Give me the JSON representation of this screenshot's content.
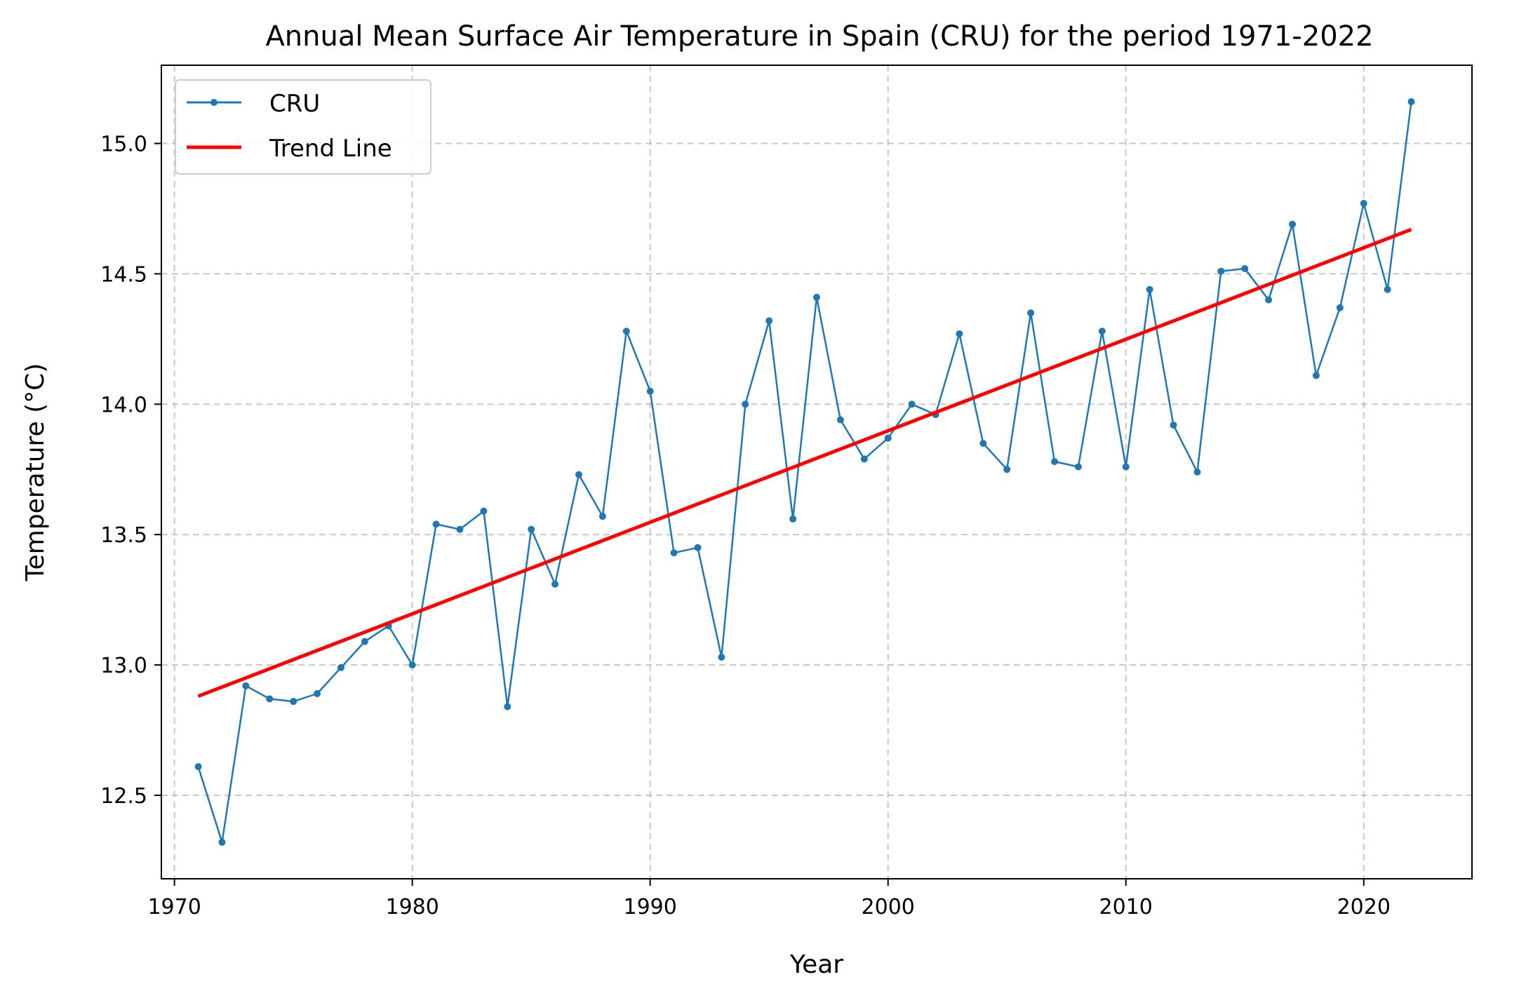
{
  "chart_data": {
    "type": "line",
    "title": "Annual Mean Surface Air Temperature in Spain (CRU) for the period 1971-2022",
    "xlabel": "Year",
    "ylabel": "Temperature (°C)",
    "xlim": [
      1969.45,
      2024.55
    ],
    "ylim": [
      12.18,
      15.3
    ],
    "xticks": [
      1970,
      1980,
      1990,
      2000,
      2010,
      2020
    ],
    "yticks": [
      12.5,
      13.0,
      13.5,
      14.0,
      14.5,
      15.0
    ],
    "xtick_labels": [
      "1970",
      "1980",
      "1990",
      "2000",
      "2010",
      "2020"
    ],
    "ytick_labels": [
      "12.5",
      "13.0",
      "13.5",
      "14.0",
      "14.5",
      "15.0"
    ],
    "grid": true,
    "legend_position": "top-left",
    "series": [
      {
        "name": "CRU",
        "color": "#1f77b4",
        "style": "line-with-markers",
        "x": [
          1971,
          1972,
          1973,
          1974,
          1975,
          1976,
          1977,
          1978,
          1979,
          1980,
          1981,
          1982,
          1983,
          1984,
          1985,
          1986,
          1987,
          1988,
          1989,
          1990,
          1991,
          1992,
          1993,
          1994,
          1995,
          1996,
          1997,
          1998,
          1999,
          2000,
          2001,
          2002,
          2003,
          2004,
          2005,
          2006,
          2007,
          2008,
          2009,
          2010,
          2011,
          2012,
          2013,
          2014,
          2015,
          2016,
          2017,
          2018,
          2019,
          2020,
          2021,
          2022
        ],
        "y": [
          12.61,
          12.32,
          12.92,
          12.87,
          12.86,
          12.89,
          12.99,
          13.09,
          13.15,
          13.0,
          13.54,
          13.52,
          13.59,
          12.84,
          13.52,
          13.31,
          13.73,
          13.57,
          14.28,
          14.05,
          13.43,
          13.45,
          13.03,
          14.0,
          14.32,
          13.56,
          14.41,
          13.94,
          13.79,
          13.87,
          14.0,
          13.96,
          14.27,
          13.85,
          13.75,
          14.35,
          13.78,
          13.76,
          14.28,
          13.76,
          14.44,
          13.92,
          13.74,
          14.51,
          14.52,
          14.4,
          14.69,
          14.11,
          14.37,
          14.77,
          14.44,
          15.16
        ]
      },
      {
        "name": "Trend Line",
        "color": "#ff0000",
        "style": "line",
        "x": [
          1971,
          2022
        ],
        "y": [
          12.88,
          14.67
        ]
      }
    ]
  }
}
